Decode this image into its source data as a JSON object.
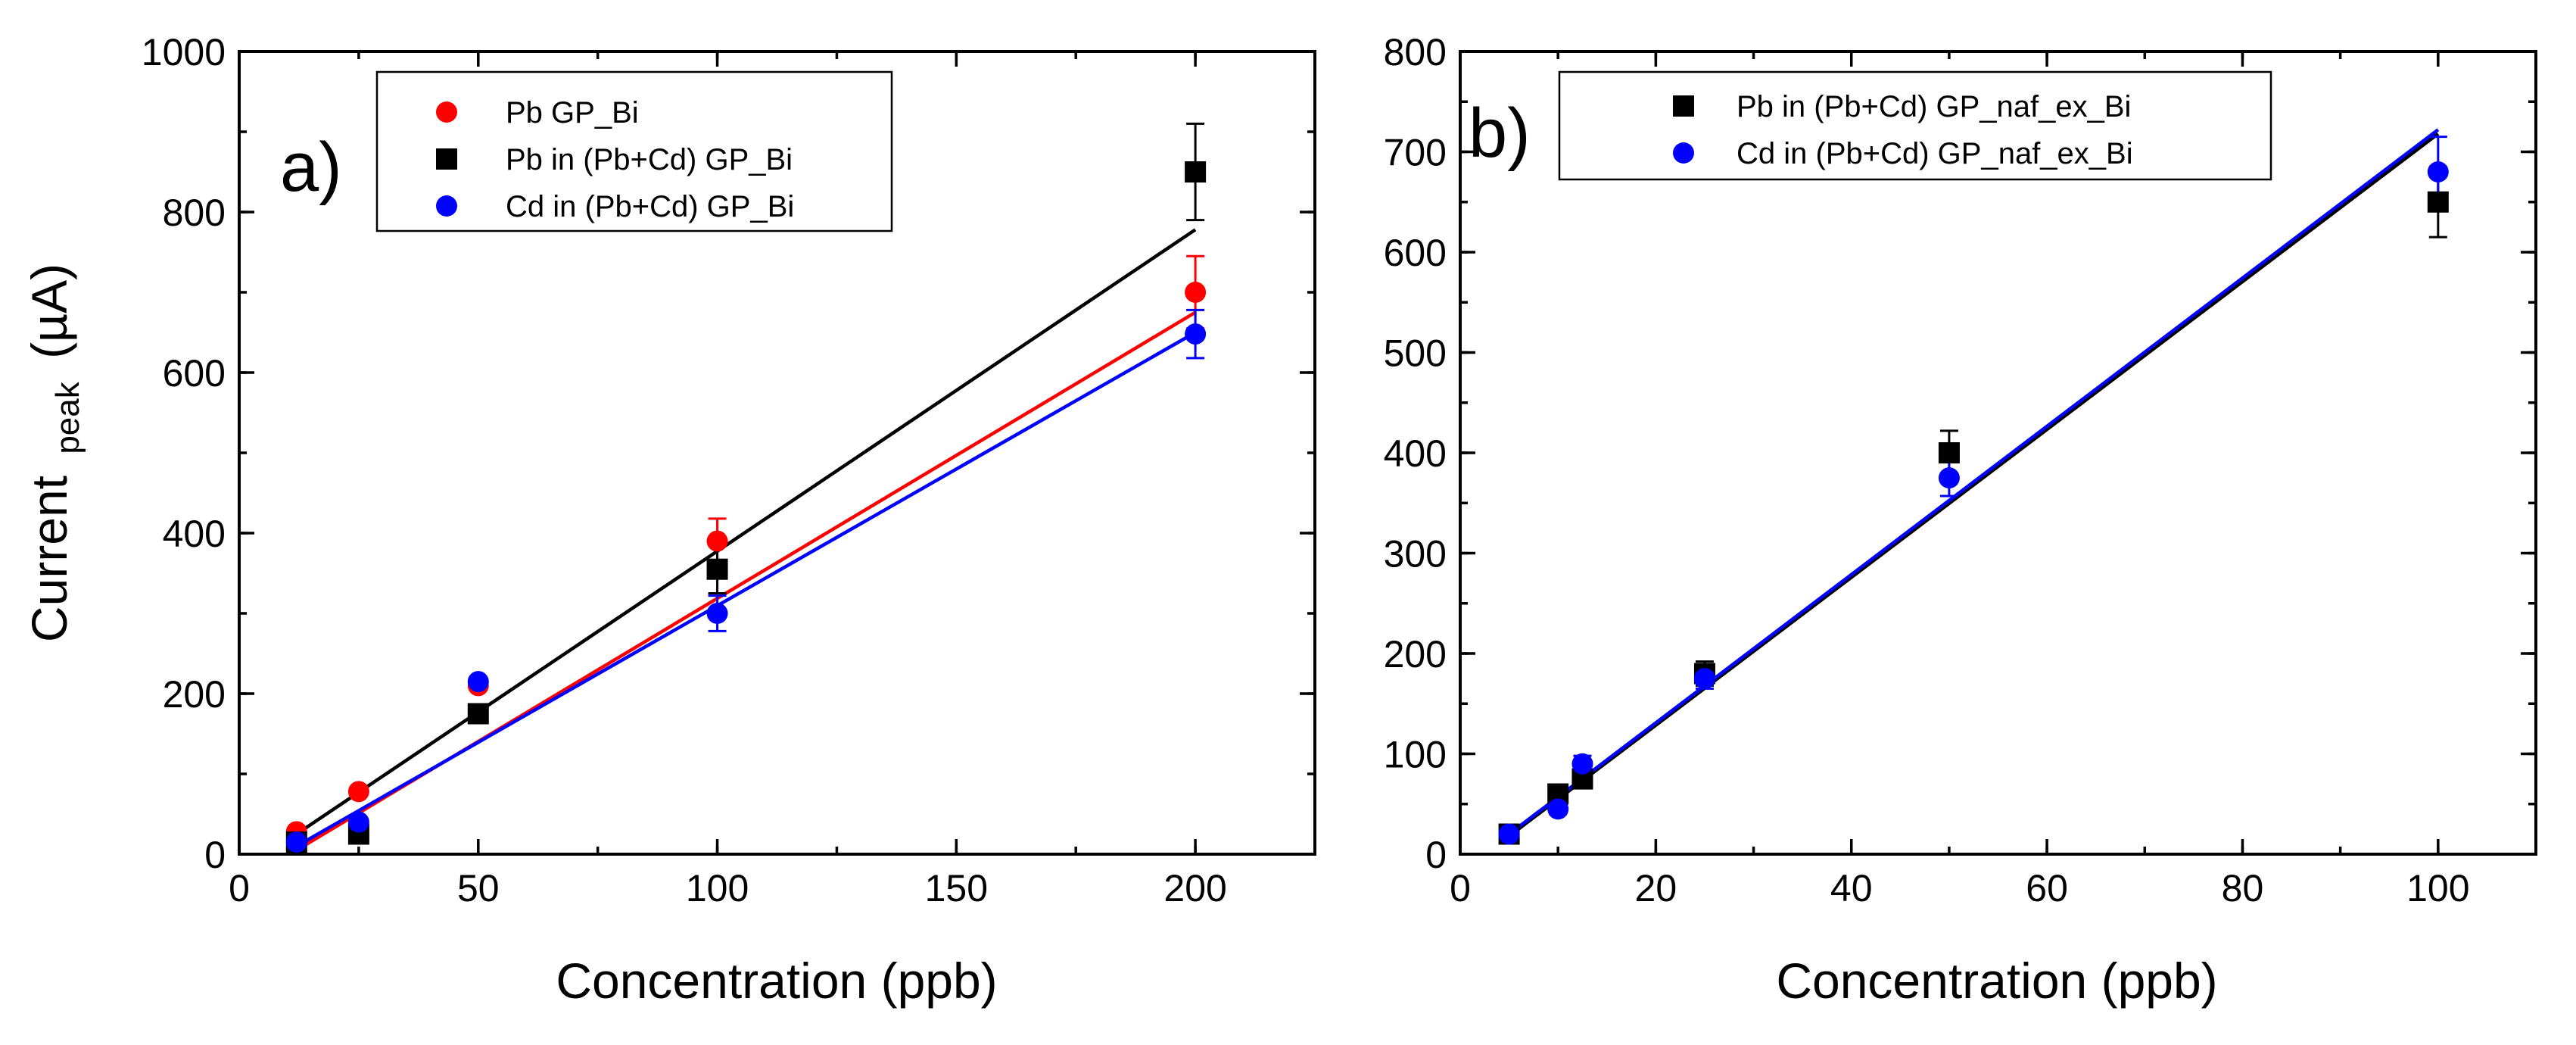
{
  "chart_data": [
    {
      "type": "scatter",
      "panel_label": "a)",
      "xlabel": "Concentration (ppb)",
      "ylabel_main": "Current",
      "ylabel_sub": "peak",
      "ylabel_unit": "(µA)",
      "xlim": [
        0,
        225
      ],
      "ylim": [
        0,
        1000
      ],
      "xticks": [
        0,
        50,
        100,
        150,
        200
      ],
      "yticks": [
        0,
        200,
        400,
        600,
        800,
        1000
      ],
      "legend_position": "top-center",
      "series": [
        {
          "name": "Pb GP_Bi",
          "marker": "circle",
          "color": "#ff0000",
          "x": [
            12,
            25,
            50,
            100,
            200
          ],
          "y": [
            28,
            78,
            210,
            390,
            700
          ],
          "err": [
            0,
            0,
            0,
            28,
            45
          ],
          "fit": [
            [
              12,
              5
            ],
            [
              200,
              675
            ]
          ]
        },
        {
          "name": "Pb in (Pb+Cd) GP_Bi",
          "marker": "square",
          "color": "#000000",
          "x": [
            12,
            25,
            50,
            100,
            200
          ],
          "y": [
            15,
            25,
            175,
            355,
            850
          ],
          "err": [
            0,
            0,
            0,
            30,
            60
          ],
          "fit": [
            [
              12,
              25
            ],
            [
              200,
              778
            ]
          ]
        },
        {
          "name": "Cd in (Pb+Cd) GP_Bi",
          "marker": "circle",
          "color": "#0000ff",
          "x": [
            12,
            25,
            50,
            100,
            200
          ],
          "y": [
            15,
            40,
            215,
            300,
            648
          ],
          "err": [
            0,
            0,
            0,
            22,
            30
          ],
          "fit": [
            [
              12,
              10
            ],
            [
              200,
              650
            ]
          ]
        }
      ]
    },
    {
      "type": "scatter",
      "panel_label": "b)",
      "xlabel": "Concentration (ppb)",
      "xlim": [
        0,
        110
      ],
      "ylim": [
        0,
        800
      ],
      "xticks": [
        0,
        20,
        40,
        60,
        80,
        100
      ],
      "yticks": [
        0,
        100,
        200,
        300,
        400,
        500,
        600,
        700,
        800
      ],
      "legend_position": "top-left",
      "series": [
        {
          "name": "Pb in (Pb+Cd) GP_naf_ex_Bi",
          "marker": "square",
          "color": "#000000",
          "x": [
            5,
            10,
            12.5,
            25,
            50,
            100
          ],
          "y": [
            20,
            60,
            75,
            180,
            400,
            650
          ],
          "err": [
            5,
            5,
            8,
            12,
            22,
            35
          ],
          "fit": [
            [
              5,
              18
            ],
            [
              100,
              718
            ]
          ]
        },
        {
          "name": "Cd in (Pb+Cd) GP_naf_ex_Bi",
          "marker": "circle",
          "color": "#0000ff",
          "x": [
            5,
            10,
            12.5,
            25,
            50,
            100
          ],
          "y": [
            20,
            45,
            90,
            175,
            375,
            680
          ],
          "err": [
            5,
            5,
            8,
            10,
            18,
            35
          ],
          "fit": [
            [
              5,
              20
            ],
            [
              100,
              722
            ]
          ]
        }
      ]
    }
  ]
}
